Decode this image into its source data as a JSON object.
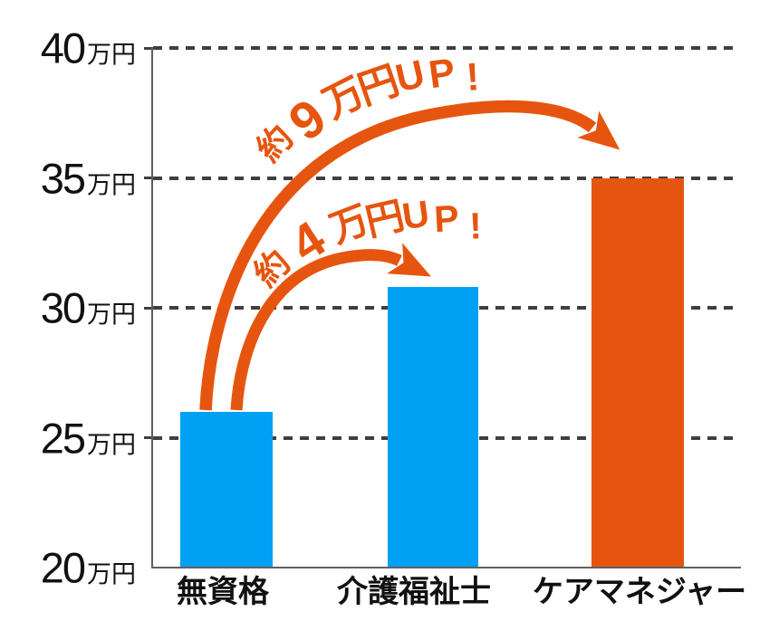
{
  "chart_data": {
    "type": "bar",
    "title": "",
    "categories": [
      "無資格",
      "介護福祉士",
      "ケアマネジャー"
    ],
    "values": [
      26,
      30.8,
      35
    ],
    "value_unit": "万円",
    "ylim": [
      20,
      40
    ],
    "yticks": [
      40,
      35,
      30,
      25,
      20
    ],
    "ytick_suffix": "万円",
    "grid": "horizontal-dashed",
    "legend": "none",
    "bar_colors": [
      "#00A0F5",
      "#00A0F5",
      "#E6550F"
    ],
    "annotations": [
      {
        "text": "約9万円UP!",
        "from": "無資格",
        "to": "ケアマネジャー",
        "color": "#E6550F"
      },
      {
        "text": "約4万円UP!",
        "from": "無資格",
        "to": "介護福祉士",
        "color": "#E6550F"
      }
    ]
  },
  "colors": {
    "background": "#FFFFFF",
    "bar_blue": "#00A0F5",
    "bar_orange": "#E6550F",
    "accent_orange": "#E6550F",
    "axis_gray": "#5F5F5F",
    "grid_gray": "#3F3F3F",
    "text_black": "#111111"
  }
}
